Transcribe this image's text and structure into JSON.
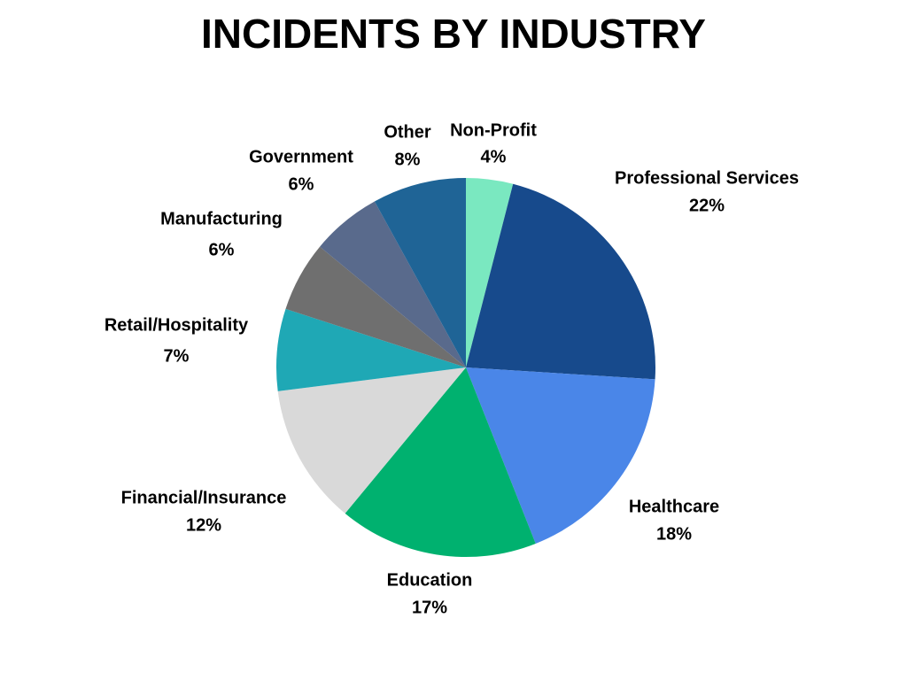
{
  "chart_data": {
    "type": "pie",
    "title": "INCIDENTS BY INDUSTRY",
    "categories": [
      "Non-Profit",
      "Professional Services",
      "Healthcare",
      "Education",
      "Financial/Insurance",
      "Retail/Hospitality",
      "Manufacturing",
      "Government",
      "Other"
    ],
    "values": [
      4,
      22,
      18,
      17,
      12,
      7,
      6,
      6,
      8
    ],
    "value_labels": [
      "4%",
      "22%",
      "18%",
      "17%",
      "12%",
      "7%",
      "6%",
      "6%",
      "8%"
    ],
    "colors": [
      "#7ae8c0",
      "#174a8c",
      "#4a86e8",
      "#00b16f",
      "#d9d9d9",
      "#1fa8b5",
      "#6f6f6f",
      "#596a8c",
      "#1f6496"
    ]
  }
}
